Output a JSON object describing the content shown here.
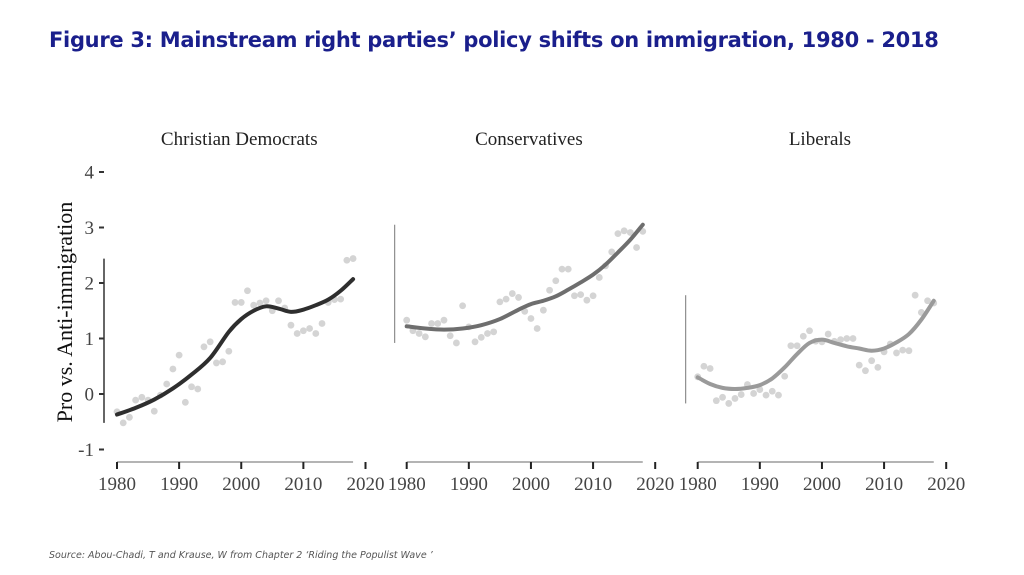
{
  "figure": {
    "title": "Figure 3: Mainstream right parties’ policy shifts on immigration, 1980 - 2018",
    "source": "Source: Abou-Chadi, T and Krause, W  from  Chapter 2 ‘Riding the Populist Wave ’"
  },
  "colors": {
    "title": "#1a1f8c",
    "points": "#d4d4d4",
    "line_cd": "#2e2e2e",
    "line_cons": "#6e6e6e",
    "line_lib": "#9a9a9a"
  },
  "chart_data": {
    "type": "scatter",
    "title": "Figure 3: Mainstream right parties’ policy shifts on immigration, 1980 - 2018",
    "ylabel": "Pro vs. Anti-immigration",
    "xlabel": "",
    "xlim": [
      1980,
      2020
    ],
    "ylim": [
      -1,
      4
    ],
    "xticks": [
      "1980",
      "1990",
      "2000",
      "2010",
      "2020"
    ],
    "yticks": [
      "-1",
      "0",
      "1",
      "2",
      "3",
      "4"
    ],
    "grid": false,
    "legend": "none",
    "panels": [
      {
        "name": "Christian Democrats",
        "x": [
          1980,
          1981,
          1982,
          1983,
          1984,
          1985,
          1986,
          1987,
          1988,
          1989,
          1990,
          1991,
          1992,
          1993,
          1994,
          1995,
          1996,
          1997,
          1998,
          1999,
          2000,
          2001,
          2002,
          2003,
          2004,
          2005,
          2006,
          2007,
          2008,
          2009,
          2010,
          2011,
          2012,
          2013,
          2014,
          2015,
          2016,
          2017,
          2018
        ],
        "y": [
          -0.32,
          -0.52,
          -0.42,
          -0.11,
          -0.06,
          -0.11,
          -0.31,
          -0.02,
          0.18,
          0.45,
          0.7,
          -0.15,
          0.13,
          0.09,
          0.85,
          0.94,
          0.56,
          0.58,
          0.77,
          1.65,
          1.65,
          1.86,
          1.6,
          1.64,
          1.68,
          1.5,
          1.68,
          1.55,
          1.24,
          1.09,
          1.14,
          1.18,
          1.09,
          1.27,
          1.65,
          1.7,
          1.71,
          2.41,
          2.44
        ],
        "trend_x": [
          1980,
          1983,
          1986,
          1989,
          1992,
          1995,
          1998,
          2000,
          2002,
          2004,
          2006,
          2008,
          2010,
          2012,
          2014,
          2016,
          2018
        ],
        "trend_y": [
          -0.37,
          -0.25,
          -0.1,
          0.1,
          0.35,
          0.65,
          1.12,
          1.35,
          1.5,
          1.58,
          1.54,
          1.48,
          1.52,
          1.6,
          1.7,
          1.86,
          2.07
        ]
      },
      {
        "name": "Conservatives",
        "x": [
          1980,
          1981,
          1982,
          1983,
          1984,
          1985,
          1986,
          1987,
          1988,
          1989,
          1990,
          1991,
          1992,
          1993,
          1994,
          1995,
          1996,
          1997,
          1998,
          1999,
          2000,
          2001,
          2002,
          2003,
          2004,
          2005,
          2006,
          2007,
          2008,
          2009,
          2010,
          2011,
          2012,
          2013,
          2014,
          2015,
          2016,
          2017,
          2018
        ],
        "y": [
          1.33,
          1.14,
          1.09,
          1.03,
          1.27,
          1.27,
          1.33,
          1.05,
          0.92,
          1.59,
          1.21,
          0.94,
          1.02,
          1.09,
          1.12,
          1.66,
          1.71,
          1.81,
          1.74,
          1.49,
          1.36,
          1.18,
          1.51,
          1.87,
          2.04,
          2.25,
          2.25,
          1.77,
          1.79,
          1.69,
          1.77,
          2.1,
          2.31,
          2.56,
          2.89,
          2.94,
          2.91,
          2.64,
          2.93
        ],
        "trend_x": [
          1980,
          1983,
          1986,
          1989,
          1992,
          1995,
          1998,
          2000,
          2002,
          2004,
          2006,
          2008,
          2010,
          2012,
          2014,
          2016,
          2018
        ],
        "trend_y": [
          1.22,
          1.18,
          1.16,
          1.18,
          1.24,
          1.35,
          1.52,
          1.62,
          1.68,
          1.76,
          1.88,
          2.01,
          2.15,
          2.33,
          2.55,
          2.78,
          3.05
        ]
      },
      {
        "name": "Liberals",
        "x": [
          1980,
          1981,
          1982,
          1983,
          1984,
          1985,
          1986,
          1987,
          1988,
          1989,
          1990,
          1991,
          1992,
          1993,
          1994,
          1995,
          1996,
          1997,
          1998,
          1999,
          2000,
          2001,
          2002,
          2003,
          2004,
          2005,
          2006,
          2007,
          2008,
          2009,
          2010,
          2011,
          2012,
          2013,
          2014,
          2015,
          2016,
          2017,
          2018
        ],
        "y": [
          0.31,
          0.5,
          0.46,
          -0.12,
          -0.06,
          -0.17,
          -0.08,
          -0.01,
          0.17,
          0.01,
          0.08,
          -0.02,
          0.05,
          -0.02,
          0.32,
          0.87,
          0.87,
          1.04,
          1.14,
          0.95,
          0.94,
          1.08,
          0.95,
          0.98,
          1.0,
          1.0,
          0.52,
          0.42,
          0.6,
          0.48,
          0.76,
          0.9,
          0.74,
          0.79,
          0.78,
          1.78,
          1.47,
          1.68,
          1.64
        ],
        "trend_x": [
          1980,
          1982,
          1984,
          1986,
          1988,
          1990,
          1992,
          1994,
          1996,
          1998,
          2000,
          2002,
          2004,
          2006,
          2008,
          2010,
          2012,
          2014,
          2016,
          2018
        ],
        "trend_y": [
          0.3,
          0.18,
          0.11,
          0.09,
          0.11,
          0.16,
          0.28,
          0.48,
          0.72,
          0.92,
          0.98,
          0.92,
          0.86,
          0.82,
          0.78,
          0.82,
          0.93,
          1.08,
          1.34,
          1.68
        ]
      }
    ]
  }
}
